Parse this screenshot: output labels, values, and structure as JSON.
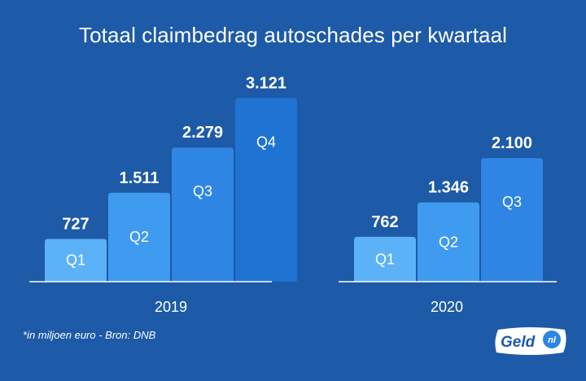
{
  "chart_data": {
    "type": "bar",
    "title": "Totaal claimbedrag autoschades per kwartaal",
    "groups": [
      {
        "label": "2019",
        "bars": [
          {
            "quarter": "Q1",
            "value": 727,
            "value_label": "727"
          },
          {
            "quarter": "Q2",
            "value": 1511,
            "value_label": "1.511"
          },
          {
            "quarter": "Q3",
            "value": 2279,
            "value_label": "2.279"
          },
          {
            "quarter": "Q4",
            "value": 3121,
            "value_label": "3.121"
          }
        ]
      },
      {
        "label": "2020",
        "bars": [
          {
            "quarter": "Q1",
            "value": 762,
            "value_label": "762"
          },
          {
            "quarter": "Q2",
            "value": 1346,
            "value_label": "1.346"
          },
          {
            "quarter": "Q3",
            "value": 2100,
            "value_label": "2.100"
          }
        ]
      }
    ],
    "quarter_colors": {
      "Q1": "#5cb2f6",
      "Q2": "#3f9bf0",
      "Q3": "#2e85e3",
      "Q4": "#1f73d2"
    },
    "grid": false,
    "legend": "none"
  },
  "footnote": "*in miljoen euro - Bron: DNB",
  "logo": {
    "text": "Geld",
    "suffix": "nl"
  }
}
